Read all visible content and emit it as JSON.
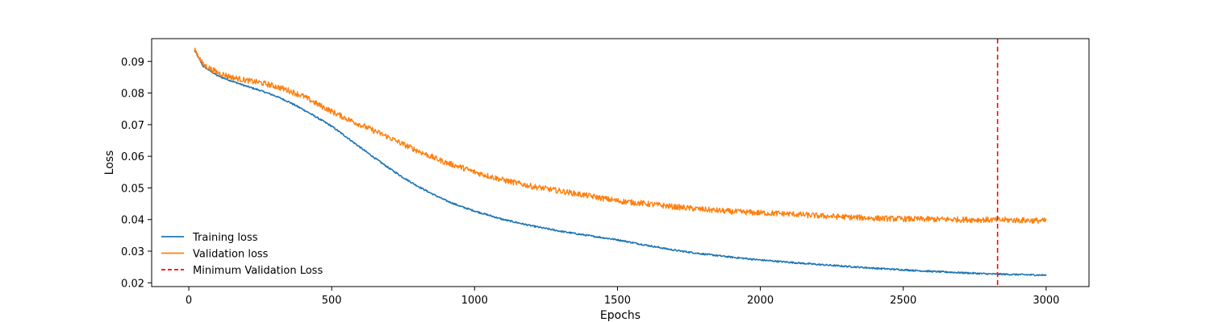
{
  "chart_data": {
    "type": "line",
    "title": "",
    "xlabel": "Epochs",
    "ylabel": "Loss",
    "xlim": [
      -130,
      3150
    ],
    "ylim": [
      0.0188,
      0.0972
    ],
    "xticks": [
      0,
      500,
      1000,
      1500,
      2000,
      2500,
      3000
    ],
    "xtick_labels": [
      "0",
      "500",
      "1000",
      "1500",
      "2000",
      "2500",
      "3000"
    ],
    "yticks": [
      0.02,
      0.03,
      0.04,
      0.05,
      0.06,
      0.07,
      0.08,
      0.09
    ],
    "ytick_labels": [
      "0.02",
      "0.03",
      "0.04",
      "0.05",
      "0.06",
      "0.07",
      "0.08",
      "0.09"
    ],
    "grid": false,
    "legend_position": "bottom-left",
    "series": [
      {
        "name": "Training loss",
        "color": "#1f77b4",
        "style": "solid",
        "x": [
          20,
          50,
          100,
          150,
          200,
          250,
          300,
          350,
          400,
          450,
          500,
          550,
          600,
          650,
          700,
          750,
          800,
          850,
          900,
          950,
          1000,
          1100,
          1200,
          1300,
          1400,
          1500,
          1600,
          1700,
          1800,
          1900,
          2000,
          2100,
          2200,
          2300,
          2400,
          2500,
          2600,
          2700,
          2800,
          2900,
          3000
        ],
        "y": [
          0.0935,
          0.0885,
          0.0855,
          0.0838,
          0.0822,
          0.0808,
          0.0792,
          0.0772,
          0.0748,
          0.0722,
          0.0695,
          0.0662,
          0.0628,
          0.0595,
          0.0563,
          0.0533,
          0.0506,
          0.0482,
          0.046,
          0.0442,
          0.0427,
          0.04,
          0.038,
          0.0363,
          0.0349,
          0.0336,
          0.0319,
          0.0303,
          0.0291,
          0.0281,
          0.0272,
          0.0265,
          0.0258,
          0.0252,
          0.0246,
          0.0241,
          0.0236,
          0.0232,
          0.0228,
          0.0226,
          0.0224
        ]
      },
      {
        "name": "Validation loss",
        "color": "#ff7f0e",
        "style": "solid",
        "x": [
          20,
          50,
          100,
          150,
          200,
          250,
          300,
          350,
          400,
          450,
          500,
          550,
          600,
          650,
          700,
          750,
          800,
          850,
          900,
          950,
          1000,
          1100,
          1200,
          1300,
          1400,
          1500,
          1600,
          1700,
          1800,
          1900,
          2000,
          2100,
          2200,
          2300,
          2400,
          2500,
          2600,
          2700,
          2800,
          2900,
          3000
        ],
        "y": [
          0.094,
          0.089,
          0.0865,
          0.085,
          0.084,
          0.0833,
          0.0822,
          0.0808,
          0.079,
          0.0765,
          0.0742,
          0.072,
          0.07,
          0.068,
          0.066,
          0.0638,
          0.0618,
          0.0598,
          0.058,
          0.0566,
          0.055,
          0.0525,
          0.0505,
          0.049,
          0.0475,
          0.0459,
          0.045,
          0.044,
          0.0432,
          0.0425,
          0.0421,
          0.0418,
          0.0412,
          0.0408,
          0.0404,
          0.0402,
          0.0401,
          0.04,
          0.0399,
          0.0398,
          0.0396
        ]
      }
    ],
    "annotations": [
      {
        "name": "Minimum Validation Loss",
        "type": "vline",
        "x": 2830,
        "color": "#ff0000",
        "style": "dashed"
      }
    ]
  }
}
